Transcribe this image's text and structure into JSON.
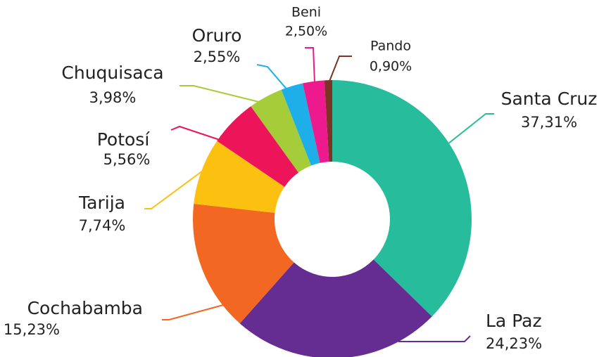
{
  "chart_data": {
    "type": "pie",
    "donut": true,
    "categories": [
      "Santa Cruz",
      "La Paz",
      "Cochabamba",
      "Tarija",
      "Potosí",
      "Chuquisaca",
      "Oruro",
      "Beni",
      "Pando"
    ],
    "values": [
      37.31,
      24.23,
      15.23,
      7.74,
      5.56,
      3.98,
      2.55,
      2.5,
      0.9
    ],
    "value_labels": [
      "37,31%",
      "24,23%",
      "15,23%",
      "7,74%",
      "5,56%",
      "3,98%",
      "2,55%",
      "2,50%",
      "0,90%"
    ],
    "colors": [
      "#26bc9c",
      "#652d91",
      "#f26722",
      "#fcc010",
      "#ed1559",
      "#a5cd39",
      "#1eaee8",
      "#ec1a8d",
      "#7b3324"
    ]
  }
}
